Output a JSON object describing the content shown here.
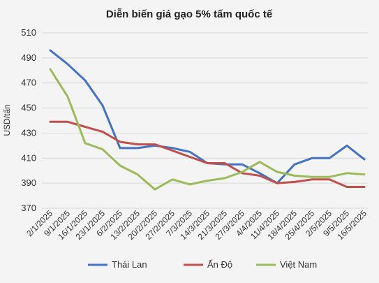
{
  "chart_data": {
    "type": "line",
    "title": "Diễn biến giá gạo 5% tấm quốc tế",
    "xlabel": "",
    "ylabel": "USD/tấn",
    "ylim": [
      370,
      510
    ],
    "yticks": [
      370,
      390,
      410,
      430,
      450,
      470,
      490,
      510
    ],
    "grid": true,
    "legend_position": "bottom",
    "categories": [
      "2/1/2025",
      "9/1/2025",
      "16/1/2025",
      "23/1/2025",
      "6/2/2025",
      "13/2/2025",
      "20/2/2025",
      "27/2/2025",
      "7/3/2025",
      "14/3/2025",
      "21/3/2025",
      "27/3/2025",
      "4/4/2025",
      "11/4/2025",
      "18/4/2025",
      "25/4/2025",
      "2/5/2025",
      "9/5/2025",
      "16/5/2025"
    ],
    "series": [
      {
        "name": "Thái Lan",
        "color": "#4472C4",
        "values": [
          496,
          485,
          472,
          452,
          418,
          418,
          420,
          418,
          415,
          406,
          405,
          405,
          398,
          390,
          405,
          410,
          410,
          420,
          409
        ]
      },
      {
        "name": "Ấn Độ",
        "color": "#C0504D",
        "values": [
          439,
          439,
          435,
          431,
          423,
          421,
          421,
          416,
          411,
          406,
          406,
          398,
          396,
          390,
          391,
          393,
          393,
          387,
          387
        ]
      },
      {
        "name": "Việt Nam",
        "color": "#9BBB59",
        "values": [
          481,
          459,
          422,
          417,
          404,
          397,
          385,
          393,
          389,
          392,
          394,
          399,
          407,
          399,
          396,
          395,
          395,
          398,
          397
        ]
      }
    ]
  }
}
